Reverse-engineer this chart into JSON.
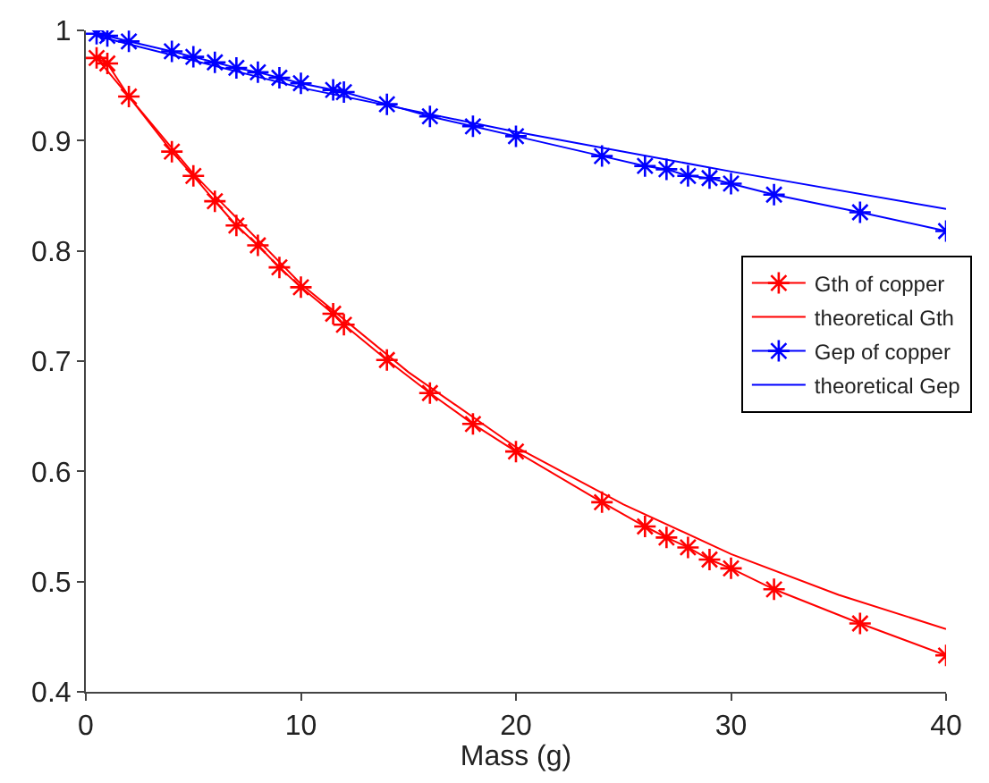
{
  "chart_data": {
    "type": "line",
    "xlabel": "Mass (g)",
    "xlim": [
      0,
      40
    ],
    "xticks": [
      0,
      10,
      20,
      30,
      40
    ],
    "ylim": [
      0.4,
      1
    ],
    "yticks": [
      0.4,
      0.5,
      0.6,
      0.7,
      0.8,
      0.9,
      1
    ],
    "legend": "right",
    "series": [
      {
        "name": "Gth of copper",
        "color": "#ff0000",
        "marker": "cross",
        "x": [
          0.5,
          1,
          2,
          4,
          5,
          6,
          7,
          8,
          9,
          10,
          11.5,
          12,
          14,
          16,
          18,
          20,
          24,
          26,
          27,
          28,
          29,
          30,
          32,
          36,
          40
        ],
        "values": [
          0.975,
          0.97,
          0.94,
          0.89,
          0.868,
          0.845,
          0.823,
          0.805,
          0.785,
          0.767,
          0.743,
          0.733,
          0.701,
          0.671,
          0.643,
          0.618,
          0.572,
          0.55,
          0.54,
          0.531,
          0.52,
          0.512,
          0.493,
          0.462,
          0.433
        ]
      },
      {
        "name": "theoretical Gth",
        "color": "#ff0000",
        "marker": "none",
        "x": [
          0.5,
          5,
          10,
          15,
          20,
          25,
          30,
          35,
          40
        ],
        "values": [
          0.975,
          0.87,
          0.77,
          0.69,
          0.622,
          0.57,
          0.525,
          0.488,
          0.457
        ]
      },
      {
        "name": "Gep of copper",
        "color": "#0000ff",
        "marker": "cross",
        "x": [
          0.5,
          1,
          2,
          4,
          5,
          6,
          7,
          8,
          9,
          10,
          11.5,
          12,
          14,
          16,
          18,
          20,
          24,
          26,
          27,
          28,
          29,
          30,
          32,
          36,
          40
        ],
        "values": [
          0.997,
          0.995,
          0.99,
          0.981,
          0.976,
          0.971,
          0.966,
          0.962,
          0.957,
          0.952,
          0.946,
          0.944,
          0.933,
          0.922,
          0.913,
          0.904,
          0.886,
          0.877,
          0.874,
          0.868,
          0.866,
          0.861,
          0.851,
          0.835,
          0.818
        ]
      },
      {
        "name": "theoretical Gep",
        "color": "#0000ff",
        "marker": "none",
        "x": [
          0.5,
          10,
          20,
          30,
          40
        ],
        "values": [
          0.995,
          0.948,
          0.908,
          0.872,
          0.838
        ]
      }
    ]
  }
}
